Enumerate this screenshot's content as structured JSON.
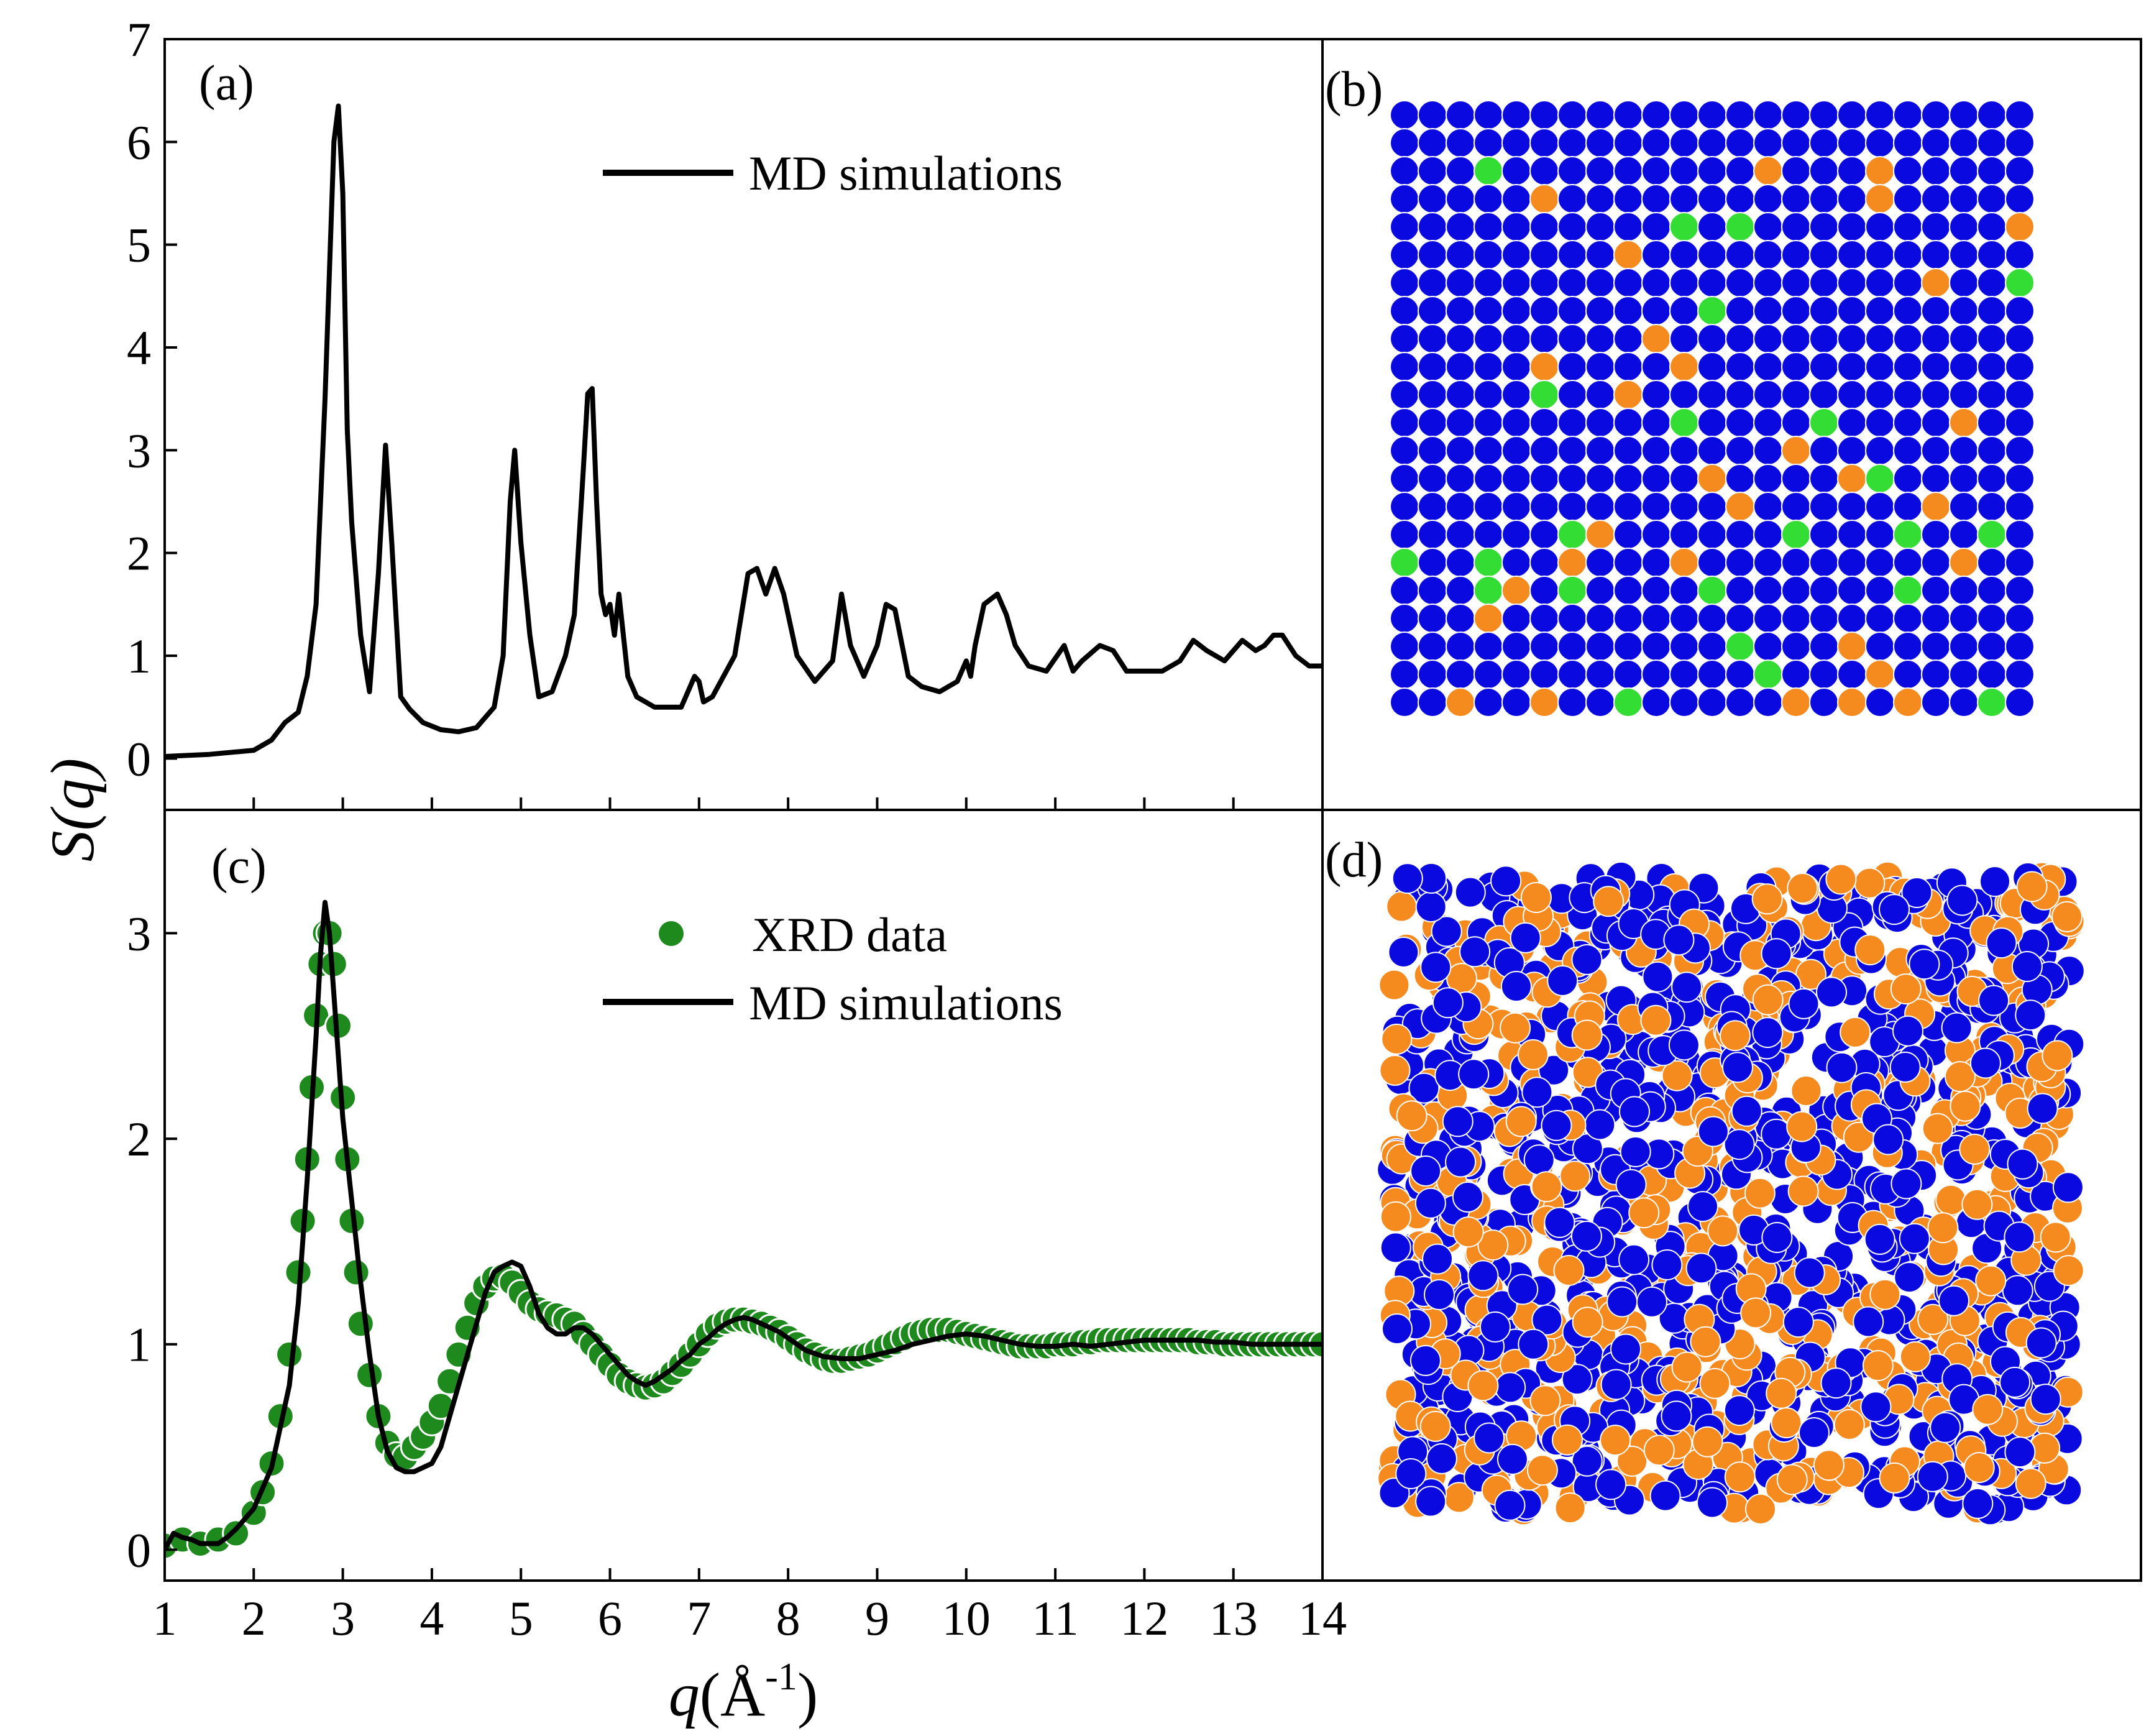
{
  "chart_data": [
    {
      "panel": "a",
      "panel_label": "(a)",
      "type": "line",
      "legend": [
        "MD simulations"
      ],
      "xlim": [
        1,
        14
      ],
      "ylim": [
        -0.5,
        7
      ],
      "yticks": [
        "0",
        "1",
        "2",
        "3",
        "4",
        "5",
        "6",
        "7"
      ],
      "series": [
        {
          "name": "MD simulations",
          "color": "#000000",
          "x": [
            1.0,
            1.5,
            2.0,
            2.2,
            2.35,
            2.5,
            2.6,
            2.7,
            2.8,
            2.9,
            2.95,
            3.0,
            3.05,
            3.1,
            3.2,
            3.3,
            3.4,
            3.48,
            3.55,
            3.65,
            3.75,
            3.9,
            4.1,
            4.3,
            4.5,
            4.7,
            4.8,
            4.88,
            4.93,
            5.0,
            5.1,
            5.2,
            5.35,
            5.5,
            5.6,
            5.7,
            5.75,
            5.8,
            5.85,
            5.9,
            5.95,
            6.0,
            6.05,
            6.1,
            6.2,
            6.3,
            6.5,
            6.8,
            6.95,
            7.0,
            7.05,
            7.15,
            7.4,
            7.55,
            7.65,
            7.75,
            7.85,
            7.95,
            8.1,
            8.3,
            8.5,
            8.6,
            8.7,
            8.85,
            9.0,
            9.1,
            9.2,
            9.35,
            9.5,
            9.7,
            9.9,
            10.0,
            10.05,
            10.1,
            10.2,
            10.35,
            10.45,
            10.55,
            10.7,
            10.9,
            11.1,
            11.2,
            11.3,
            11.5,
            11.65,
            11.8,
            12.0,
            12.2,
            12.4,
            12.55,
            12.7,
            12.9,
            13.1,
            13.25,
            13.35,
            13.45,
            13.55,
            13.7,
            13.85,
            14.0
          ],
          "y": [
            0.02,
            0.04,
            0.08,
            0.18,
            0.35,
            0.45,
            0.8,
            1.5,
            3.5,
            6.0,
            6.35,
            5.5,
            3.2,
            2.3,
            1.2,
            0.65,
            1.8,
            3.05,
            2.1,
            0.6,
            0.48,
            0.35,
            0.28,
            0.26,
            0.3,
            0.5,
            1.0,
            2.5,
            3.0,
            2.1,
            1.2,
            0.6,
            0.65,
            1.0,
            1.4,
            2.8,
            3.55,
            3.6,
            2.5,
            1.6,
            1.4,
            1.5,
            1.2,
            1.6,
            0.8,
            0.6,
            0.5,
            0.5,
            0.8,
            0.75,
            0.55,
            0.6,
            1.0,
            1.8,
            1.85,
            1.6,
            1.85,
            1.6,
            1.0,
            0.75,
            0.95,
            1.6,
            1.1,
            0.8,
            1.1,
            1.5,
            1.45,
            0.8,
            0.7,
            0.65,
            0.75,
            0.95,
            0.8,
            1.1,
            1.5,
            1.6,
            1.4,
            1.1,
            0.9,
            0.85,
            1.1,
            0.85,
            0.95,
            1.1,
            1.05,
            0.85,
            0.85,
            0.85,
            0.95,
            1.15,
            1.05,
            0.95,
            1.15,
            1.05,
            1.1,
            1.2,
            1.2,
            1.0,
            0.9,
            0.9
          ]
        }
      ]
    },
    {
      "panel": "c",
      "panel_label": "(c)",
      "type": "line",
      "legend": [
        "XRD data",
        "MD simulations"
      ],
      "xlabel_var": "q",
      "xlabel_unit": "(Å",
      "xlabel_exp": "-1",
      "xlabel_close": ")",
      "ylabel_var": "S",
      "ylabel_arg": "(q)",
      "xlim": [
        1,
        14
      ],
      "ylim": [
        -0.15,
        3.6
      ],
      "xticks": [
        "1",
        "2",
        "3",
        "4",
        "5",
        "6",
        "7",
        "8",
        "9",
        "10",
        "11",
        "12",
        "13",
        "14"
      ],
      "yticks": [
        "0",
        "1",
        "2",
        "3"
      ],
      "series": [
        {
          "name": "XRD data",
          "color": "#1e8a1e",
          "marker": "circle",
          "x": [
            1.0,
            1.2,
            1.4,
            1.6,
            1.8,
            2.0,
            2.1,
            2.2,
            2.3,
            2.4,
            2.5,
            2.55,
            2.6,
            2.65,
            2.7,
            2.75,
            2.8,
            2.85,
            2.9,
            2.95,
            3.0,
            3.05,
            3.1,
            3.15,
            3.2,
            3.3,
            3.4,
            3.5,
            3.6,
            3.7,
            3.8,
            3.9,
            4.0,
            4.1,
            4.2,
            4.3,
            4.4,
            4.5,
            4.6,
            4.7,
            4.8,
            4.9,
            5.0,
            5.1,
            5.2,
            5.3,
            5.4,
            5.5,
            5.6,
            5.7,
            5.8,
            5.9,
            6.0,
            6.1,
            6.2,
            6.3,
            6.4,
            6.5,
            6.6,
            6.7,
            6.8,
            6.9,
            7.0,
            7.1,
            7.2,
            7.3,
            7.4,
            7.5,
            7.6,
            7.7,
            7.8,
            7.9,
            8.0,
            8.1,
            8.2,
            8.3,
            8.4,
            8.5,
            8.6,
            8.7,
            8.8,
            8.9,
            9.0,
            9.1,
            9.2,
            9.3,
            9.4,
            9.5,
            9.6,
            9.7,
            9.8,
            9.9,
            10.0,
            10.1,
            10.2,
            10.3,
            10.4,
            10.5,
            10.6,
            10.7,
            10.8,
            10.9,
            11.0,
            11.1,
            11.2,
            11.3,
            11.4,
            11.5,
            11.6,
            11.7,
            11.8,
            11.9,
            12.0,
            12.1,
            12.2,
            12.3,
            12.4,
            12.5,
            12.6,
            12.7,
            12.8,
            12.9,
            13.0,
            13.1,
            13.2,
            13.3,
            13.4,
            13.5,
            13.6,
            13.7,
            13.8,
            13.9,
            14.0
          ],
          "y": [
            0.02,
            0.05,
            0.03,
            0.05,
            0.08,
            0.18,
            0.28,
            0.42,
            0.65,
            0.95,
            1.35,
            1.6,
            1.9,
            2.25,
            2.6,
            2.85,
            3.0,
            3.0,
            2.85,
            2.55,
            2.2,
            1.9,
            1.6,
            1.35,
            1.1,
            0.85,
            0.65,
            0.52,
            0.46,
            0.45,
            0.5,
            0.55,
            0.62,
            0.7,
            0.82,
            0.95,
            1.08,
            1.2,
            1.28,
            1.32,
            1.33,
            1.3,
            1.25,
            1.2,
            1.17,
            1.15,
            1.14,
            1.12,
            1.1,
            1.05,
            1.0,
            0.95,
            0.9,
            0.85,
            0.82,
            0.8,
            0.79,
            0.8,
            0.82,
            0.86,
            0.9,
            0.95,
            1.0,
            1.05,
            1.09,
            1.11,
            1.12,
            1.12,
            1.11,
            1.1,
            1.08,
            1.06,
            1.03,
            1.0,
            0.97,
            0.95,
            0.93,
            0.92,
            0.92,
            0.93,
            0.94,
            0.95,
            0.97,
            0.99,
            1.01,
            1.03,
            1.05,
            1.06,
            1.07,
            1.07,
            1.07,
            1.06,
            1.05,
            1.04,
            1.03,
            1.02,
            1.01,
            1.0,
            0.99,
            0.99,
            0.99,
            0.99,
            1.0,
            1.0,
            1.0,
            1.01,
            1.01,
            1.02,
            1.02,
            1.02,
            1.02,
            1.02,
            1.02,
            1.02,
            1.02,
            1.02,
            1.02,
            1.02,
            1.01,
            1.01,
            1.01,
            1.0,
            1.0,
            1.0,
            1.0,
            1.0,
            1.0,
            1.0,
            1.0,
            1.0,
            1.0,
            1.0,
            1.0
          ]
        },
        {
          "name": "MD simulations",
          "color": "#000000",
          "x": [
            1.0,
            1.1,
            1.2,
            1.3,
            1.4,
            1.6,
            1.7,
            1.8,
            2.0,
            2.2,
            2.4,
            2.5,
            2.6,
            2.7,
            2.75,
            2.8,
            2.85,
            2.9,
            2.95,
            3.0,
            3.1,
            3.2,
            3.3,
            3.4,
            3.5,
            3.6,
            3.7,
            3.8,
            3.9,
            4.0,
            4.1,
            4.2,
            4.3,
            4.4,
            4.5,
            4.6,
            4.7,
            4.8,
            4.9,
            5.0,
            5.1,
            5.2,
            5.3,
            5.4,
            5.5,
            5.6,
            5.7,
            5.8,
            5.9,
            6.0,
            6.1,
            6.2,
            6.3,
            6.4,
            6.5,
            6.6,
            6.7,
            6.8,
            6.9,
            7.0,
            7.1,
            7.2,
            7.3,
            7.4,
            7.5,
            7.6,
            7.7,
            7.8,
            7.9,
            8.0,
            8.2,
            8.4,
            8.6,
            8.8,
            9.0,
            9.2,
            9.4,
            9.6,
            9.8,
            10.0,
            10.2,
            10.4,
            10.6,
            10.8,
            11.0,
            11.2,
            11.4,
            11.6,
            11.8,
            12.0,
            12.2,
            12.4,
            12.6,
            12.8,
            13.0,
            13.2,
            13.4,
            13.6,
            13.8,
            14.0
          ],
          "y": [
            0.0,
            0.08,
            0.06,
            0.05,
            0.03,
            0.03,
            0.06,
            0.1,
            0.2,
            0.4,
            0.8,
            1.2,
            1.8,
            2.5,
            2.9,
            3.15,
            3.0,
            2.7,
            2.4,
            2.1,
            1.7,
            1.3,
            0.95,
            0.65,
            0.48,
            0.4,
            0.38,
            0.38,
            0.4,
            0.42,
            0.5,
            0.65,
            0.8,
            0.95,
            1.1,
            1.25,
            1.35,
            1.38,
            1.4,
            1.38,
            1.28,
            1.15,
            1.08,
            1.05,
            1.05,
            1.08,
            1.08,
            1.05,
            1.0,
            0.95,
            0.9,
            0.85,
            0.82,
            0.8,
            0.82,
            0.85,
            0.88,
            0.92,
            0.95,
            1.0,
            1.03,
            1.07,
            1.1,
            1.12,
            1.13,
            1.12,
            1.1,
            1.08,
            1.06,
            1.03,
            0.97,
            0.94,
            0.93,
            0.93,
            0.95,
            0.97,
            1.0,
            1.02,
            1.04,
            1.05,
            1.04,
            1.02,
            1.0,
            0.99,
            0.99,
            1.0,
            0.99,
            1.0,
            1.01,
            1.02,
            1.02,
            1.02,
            1.02,
            1.01,
            1.01,
            1.0,
            1.0,
            1.0,
            1.0,
            1.0
          ]
        }
      ]
    }
  ],
  "snapshots": {
    "b_label": "(b)",
    "d_label": "(d)",
    "colors": {
      "blue": "#0a0ae0",
      "orange": "#f58a1f",
      "green": "#33dd33",
      "outline": "#ffffff"
    }
  }
}
